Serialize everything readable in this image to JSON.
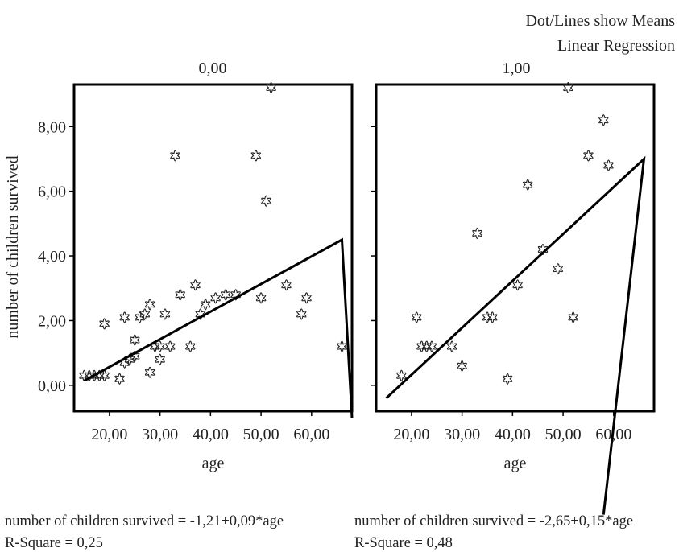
{
  "header": {
    "line1": "Dot/Lines show Means",
    "line2": "Linear Regression"
  },
  "ylabel": "number of children survived",
  "colors": {
    "frame": "#000000",
    "marker": "#222222",
    "line": "#000000"
  },
  "chart_data": {
    "type": "scatter",
    "ylabel": "number of children survived",
    "ylim": [
      -0.8,
      9.3
    ],
    "yticks": [
      0,
      2,
      4,
      6,
      8
    ],
    "ytick_labels": [
      "0,00",
      "2,00",
      "4,00",
      "6,00",
      "8,00"
    ],
    "panels": [
      {
        "title": "0,00",
        "xlabel": "age",
        "xlim": [
          13,
          68
        ],
        "xticks": [
          20,
          30,
          40,
          50,
          60
        ],
        "xtick_labels": [
          "20,00",
          "30,00",
          "40,00",
          "50,00",
          "60,00"
        ],
        "regression": {
          "x": [
            15,
            66
          ],
          "y": [
            0.14,
            4.5
          ],
          "tail_end": [
            68,
            -1.0
          ]
        },
        "equation": "number of children survived = -1,21+0,09*age",
        "r_square": "R-Square = 0,25",
        "points": [
          [
            15,
            0.3
          ],
          [
            16,
            0.3
          ],
          [
            17,
            0.3
          ],
          [
            18,
            0.3
          ],
          [
            19,
            0.3
          ],
          [
            19,
            1.9
          ],
          [
            22,
            0.2
          ],
          [
            23,
            2.1
          ],
          [
            23,
            0.7
          ],
          [
            24,
            0.8
          ],
          [
            25,
            0.9
          ],
          [
            25,
            1.4
          ],
          [
            26,
            2.1
          ],
          [
            27,
            2.2
          ],
          [
            28,
            0.4
          ],
          [
            28,
            2.5
          ],
          [
            29,
            1.2
          ],
          [
            30,
            1.2
          ],
          [
            30,
            0.8
          ],
          [
            31,
            2.2
          ],
          [
            32,
            1.2
          ],
          [
            33,
            7.1
          ],
          [
            34,
            2.8
          ],
          [
            36,
            1.2
          ],
          [
            37,
            3.1
          ],
          [
            38,
            2.2
          ],
          [
            39,
            2.5
          ],
          [
            41,
            2.7
          ],
          [
            43,
            2.8
          ],
          [
            45,
            2.8
          ],
          [
            49,
            7.1
          ],
          [
            50,
            2.7
          ],
          [
            51,
            5.7
          ],
          [
            52,
            9.2
          ],
          [
            55,
            3.1
          ],
          [
            58,
            2.2
          ],
          [
            59,
            2.7
          ],
          [
            66,
            1.2
          ]
        ]
      },
      {
        "title": "1,00",
        "xlabel": "age",
        "xlim": [
          13,
          68
        ],
        "xticks": [
          20,
          30,
          40,
          50,
          60
        ],
        "xtick_labels": [
          "20,00",
          "30,00",
          "40,00",
          "50,00",
          "60,00"
        ],
        "regression": {
          "x": [
            15,
            66
          ],
          "y": [
            -0.4,
            7.0
          ],
          "tail_end": [
            58,
            -4.0
          ]
        },
        "equation": "number of children survived = -2,65+0,15*age",
        "r_square": "R-Square = 0,48",
        "points": [
          [
            18,
            0.3
          ],
          [
            21,
            2.1
          ],
          [
            22,
            1.2
          ],
          [
            23,
            1.2
          ],
          [
            24,
            1.2
          ],
          [
            28,
            1.2
          ],
          [
            30,
            0.6
          ],
          [
            33,
            4.7
          ],
          [
            35,
            2.1
          ],
          [
            36,
            2.1
          ],
          [
            39,
            0.2
          ],
          [
            41,
            3.1
          ],
          [
            43,
            6.2
          ],
          [
            46,
            4.2
          ],
          [
            49,
            3.6
          ],
          [
            51,
            9.2
          ],
          [
            52,
            2.1
          ],
          [
            55,
            7.1
          ],
          [
            58,
            8.2
          ],
          [
            59,
            6.8
          ]
        ]
      }
    ]
  }
}
